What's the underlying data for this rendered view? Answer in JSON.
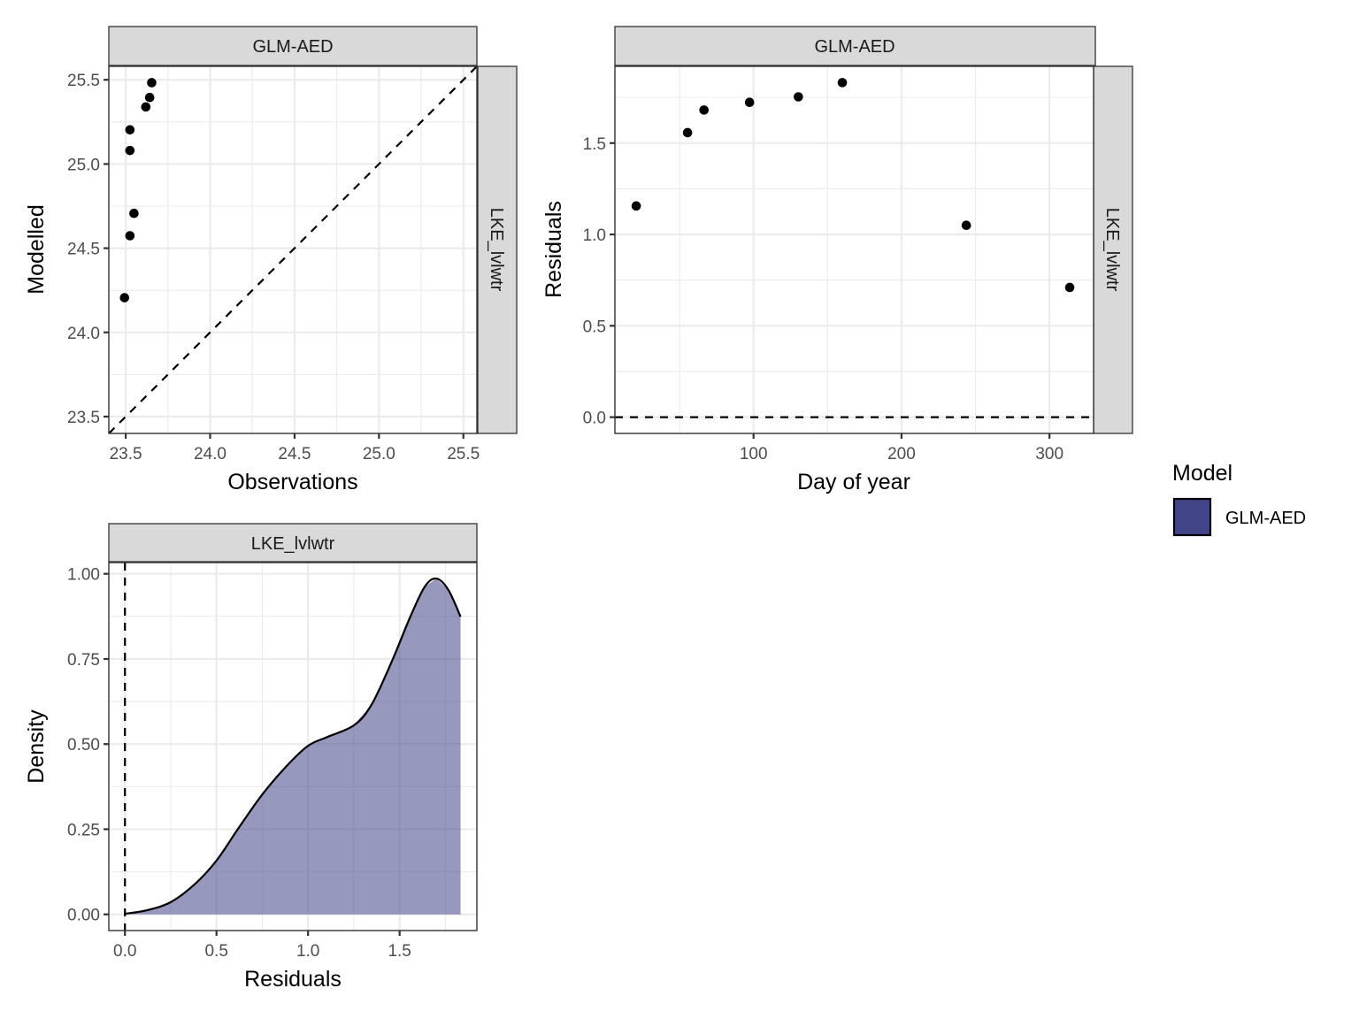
{
  "chart_data": [
    {
      "id": "obs-vs-mod",
      "type": "scatter",
      "strip_top": "GLM-AED",
      "strip_right": "LKE_lvlwtr",
      "xlabel": "Observations",
      "ylabel": "Modelled",
      "xlim": [
        23.4,
        25.58
      ],
      "ylim": [
        23.4,
        25.58
      ],
      "xticks": [
        23.5,
        24.0,
        24.5,
        25.0,
        25.5
      ],
      "xtick_labels": [
        "23.5",
        "24.0",
        "24.5",
        "25.0",
        "25.5"
      ],
      "yticks": [
        23.5,
        24.0,
        24.5,
        25.0,
        25.5
      ],
      "ytick_labels": [
        "23.5",
        "24.0",
        "24.5",
        "25.0",
        "25.5"
      ],
      "grid": true,
      "reference_line": {
        "type": "identity",
        "style": "dashed"
      },
      "points": [
        {
          "x": 23.654,
          "y": 25.483
        },
        {
          "x": 23.642,
          "y": 25.395
        },
        {
          "x": 23.619,
          "y": 25.339
        },
        {
          "x": 23.525,
          "y": 25.203
        },
        {
          "x": 23.525,
          "y": 25.08
        },
        {
          "x": 23.549,
          "y": 24.707
        },
        {
          "x": 23.525,
          "y": 24.574
        },
        {
          "x": 23.493,
          "y": 24.206
        }
      ]
    },
    {
      "id": "residuals-vs-doy",
      "type": "scatter",
      "strip_top": "GLM-AED",
      "strip_right": "LKE_lvlwtr",
      "xlabel": "Day of year",
      "ylabel": "Residuals",
      "xlim": [
        6.3,
        329.8
      ],
      "ylim": [
        -0.089,
        1.92
      ],
      "xticks": [
        100,
        200,
        300
      ],
      "xtick_labels": [
        "100",
        "200",
        "300"
      ],
      "yticks": [
        0.0,
        0.5,
        1.0,
        1.5
      ],
      "ytick_labels": [
        "0.0",
        "0.5",
        "1.0",
        "1.5"
      ],
      "grid": true,
      "reference_line": {
        "type": "horizontal",
        "y": 0,
        "style": "dashed"
      },
      "points": [
        {
          "x": 20.7,
          "y": 1.156
        },
        {
          "x": 55.4,
          "y": 1.557
        },
        {
          "x": 66.5,
          "y": 1.681
        },
        {
          "x": 97.3,
          "y": 1.723
        },
        {
          "x": 130.3,
          "y": 1.753
        },
        {
          "x": 160.0,
          "y": 1.831
        },
        {
          "x": 243.8,
          "y": 1.05
        },
        {
          "x": 313.7,
          "y": 0.71
        }
      ]
    },
    {
      "id": "residual-density",
      "type": "area",
      "strip_top": "LKE_lvlwtr",
      "xlabel": "Residuals",
      "ylabel": "Density",
      "xlim": [
        -0.088,
        1.922
      ],
      "ylim": [
        -0.0475,
        1.033
      ],
      "xticks": [
        0.0,
        0.5,
        1.0,
        1.5
      ],
      "xtick_labels": [
        "0.0",
        "0.5",
        "1.0",
        "1.5"
      ],
      "yticks": [
        0.0,
        0.25,
        0.5,
        0.75,
        1.0
      ],
      "ytick_labels": [
        "0.00",
        "0.25",
        "0.50",
        "0.75",
        "1.00"
      ],
      "grid": true,
      "reference_line": {
        "type": "vertical",
        "x": 0,
        "style": "dashed"
      },
      "series": [
        {
          "name": "GLM-AED",
          "color": "#414487",
          "x": [
            0.003,
            0.12,
            0.25,
            0.38,
            0.5,
            0.62,
            0.75,
            0.88,
            1.0,
            1.106,
            1.25,
            1.347,
            1.46,
            1.556,
            1.637,
            1.701,
            1.766,
            1.833
          ],
          "y": [
            0.002,
            0.012,
            0.036,
            0.088,
            0.158,
            0.253,
            0.352,
            0.434,
            0.495,
            0.521,
            0.555,
            0.616,
            0.746,
            0.871,
            0.962,
            0.986,
            0.953,
            0.874
          ]
        }
      ]
    }
  ],
  "legend": {
    "title": "Model",
    "items": [
      {
        "label": "GLM-AED",
        "color": "#414487"
      }
    ]
  }
}
